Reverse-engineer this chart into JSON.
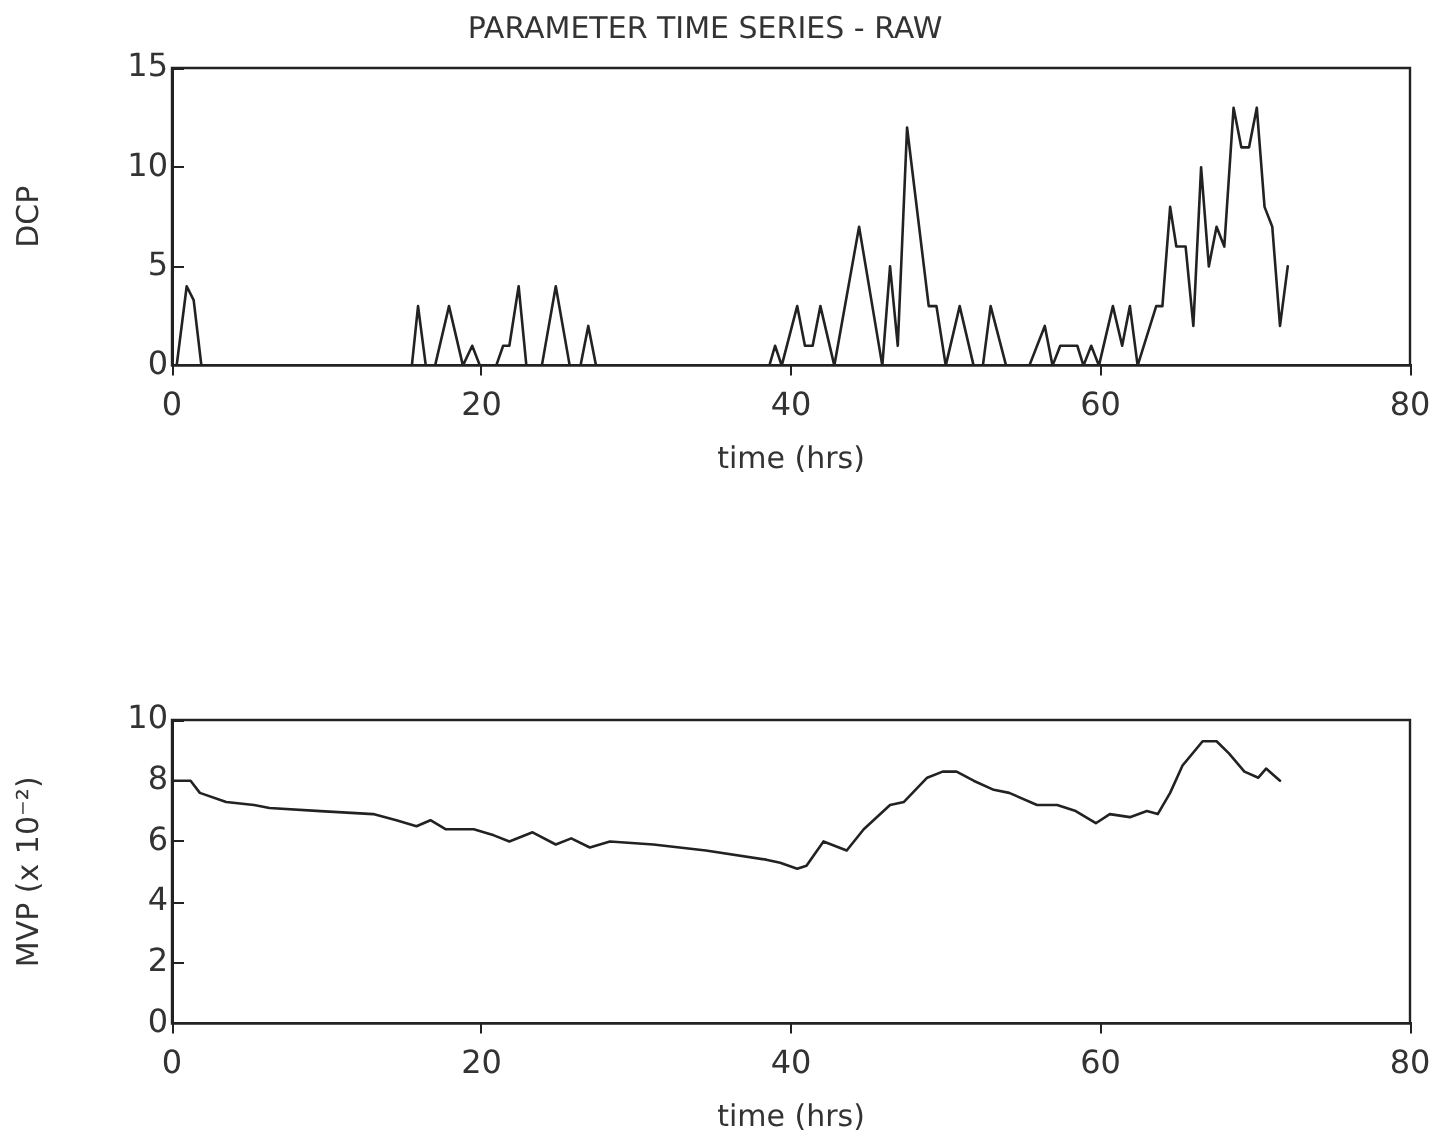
{
  "chart_data": [
    {
      "type": "line",
      "title": "PARAMETER TIME SERIES - RAW",
      "xlabel": "time (hrs)",
      "ylabel": "DCP",
      "xlim": [
        0,
        80
      ],
      "xticks": [
        0,
        20,
        40,
        60,
        80
      ],
      "ylim": [
        0,
        15
      ],
      "yticks": [
        0,
        5,
        10,
        15
      ],
      "marker": "none",
      "series": [
        {
          "color": "#222222",
          "x": [
            0.3,
            0.95,
            1.4,
            1.9,
            15.5,
            15.9,
            16.4,
            17.0,
            17.9,
            18.8,
            19.4,
            19.9,
            20.95,
            21.4,
            21.8,
            22.4,
            22.9,
            23.9,
            24.8,
            25.7,
            26.4,
            26.9,
            27.4,
            38.6,
            38.97,
            39.4,
            40.4,
            40.9,
            41.4,
            41.9,
            42.8,
            44.4,
            45.9,
            46.4,
            46.9,
            47.5,
            48.9,
            49.4,
            50.0,
            50.9,
            51.8,
            52.4,
            52.9,
            53.9,
            55.4,
            56.4,
            56.9,
            57.4,
            58.5,
            58.9,
            59.4,
            59.9,
            60.8,
            61.4,
            61.9,
            62.4,
            63.6,
            64.0,
            64.5,
            64.9,
            65.5,
            66.0,
            66.5,
            67.0,
            67.5,
            68.0,
            68.6,
            69.1,
            69.6,
            70.1,
            70.6,
            71.1,
            71.6,
            72.1
          ],
          "values": [
            0,
            4,
            3.3,
            0,
            0,
            3,
            0,
            0,
            3,
            0,
            1,
            0,
            0,
            1,
            1,
            4,
            0,
            0,
            4,
            0,
            0,
            2,
            0,
            0,
            1,
            0,
            3,
            1,
            1,
            3,
            0,
            7,
            0,
            5,
            1,
            12,
            3,
            3,
            0,
            3,
            0,
            0,
            3,
            0,
            0,
            2,
            0,
            1,
            1,
            0,
            1,
            0,
            3,
            1,
            3,
            0,
            3,
            3,
            8,
            6,
            6,
            2,
            10,
            5,
            7,
            6,
            13,
            11,
            11,
            13,
            8,
            7,
            2,
            5
          ]
        }
      ]
    },
    {
      "type": "line",
      "xlabel": "time (hrs)",
      "ylabel": "MVP (x 10⁻²)",
      "xlim": [
        0,
        80
      ],
      "xticks": [
        0,
        20,
        40,
        60,
        80
      ],
      "ylim": [
        0,
        10
      ],
      "yticks": [
        0,
        2,
        4,
        6,
        8,
        10
      ],
      "marker": "none",
      "series": [
        {
          "color": "#222222",
          "x": [
            0,
            1.2,
            1.8,
            3.5,
            5.3,
            6.3,
            9.6,
            13.0,
            14.5,
            15.8,
            16.7,
            17.7,
            19.5,
            20.8,
            21.8,
            23.3,
            24.8,
            25.8,
            27.0,
            28.3,
            31.1,
            34.5,
            38.4,
            39.3,
            40.4,
            41.0,
            42.1,
            43.6,
            44.7,
            46.4,
            47.3,
            48.8,
            49.8,
            50.7,
            51.8,
            53.1,
            54.1,
            55.9,
            57.2,
            58.4,
            59.7,
            60.6,
            61.9,
            63.0,
            63.7,
            64.5,
            65.3,
            66.6,
            67.5,
            68.3,
            69.3,
            70.2,
            70.7,
            71.6
          ],
          "values": [
            8.0,
            8.0,
            7.6,
            7.3,
            7.2,
            7.1,
            7.0,
            6.9,
            6.7,
            6.5,
            6.7,
            6.4,
            6.4,
            6.2,
            6.0,
            6.3,
            5.9,
            6.1,
            5.8,
            6.0,
            5.9,
            5.7,
            5.4,
            5.3,
            5.1,
            5.2,
            6.0,
            5.7,
            6.4,
            7.2,
            7.3,
            8.1,
            8.3,
            8.3,
            8.0,
            7.7,
            7.6,
            7.2,
            7.2,
            7.0,
            6.6,
            6.9,
            6.8,
            7.0,
            6.9,
            7.6,
            8.5,
            9.3,
            9.3,
            8.9,
            8.3,
            8.1,
            8.4,
            8.0
          ]
        }
      ]
    }
  ]
}
